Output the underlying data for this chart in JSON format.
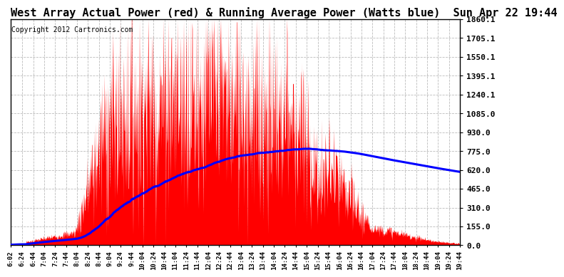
{
  "title": "West Array Actual Power (red) & Running Average Power (Watts blue)  Sun Apr 22 19:44",
  "copyright": "Copyright 2012 Cartronics.com",
  "yticks": [
    0.0,
    155.0,
    310.0,
    465.0,
    620.0,
    775.0,
    930.0,
    1085.0,
    1240.1,
    1395.1,
    1550.1,
    1705.1,
    1860.1
  ],
  "ymax": 1860.1,
  "bg_color": "#ffffff",
  "plot_bg_color": "#ffffff",
  "grid_color": "#bbbbbb",
  "fill_color": "red",
  "avg_color": "blue",
  "title_fontsize": 11,
  "copyright_fontsize": 7,
  "xtick_fontsize": 6.5,
  "ytick_fontsize": 8,
  "xtick_labels": [
    "6:02",
    "6:24",
    "6:44",
    "7:04",
    "7:24",
    "7:44",
    "8:04",
    "8:24",
    "8:44",
    "9:04",
    "9:24",
    "9:44",
    "10:04",
    "10:24",
    "10:44",
    "11:04",
    "11:24",
    "11:44",
    "12:04",
    "12:24",
    "12:44",
    "13:04",
    "13:24",
    "13:44",
    "14:04",
    "14:24",
    "14:44",
    "15:04",
    "15:24",
    "15:44",
    "16:04",
    "16:24",
    "16:44",
    "17:04",
    "17:24",
    "17:44",
    "18:04",
    "18:24",
    "18:44",
    "19:04",
    "19:24",
    "19:44"
  ]
}
